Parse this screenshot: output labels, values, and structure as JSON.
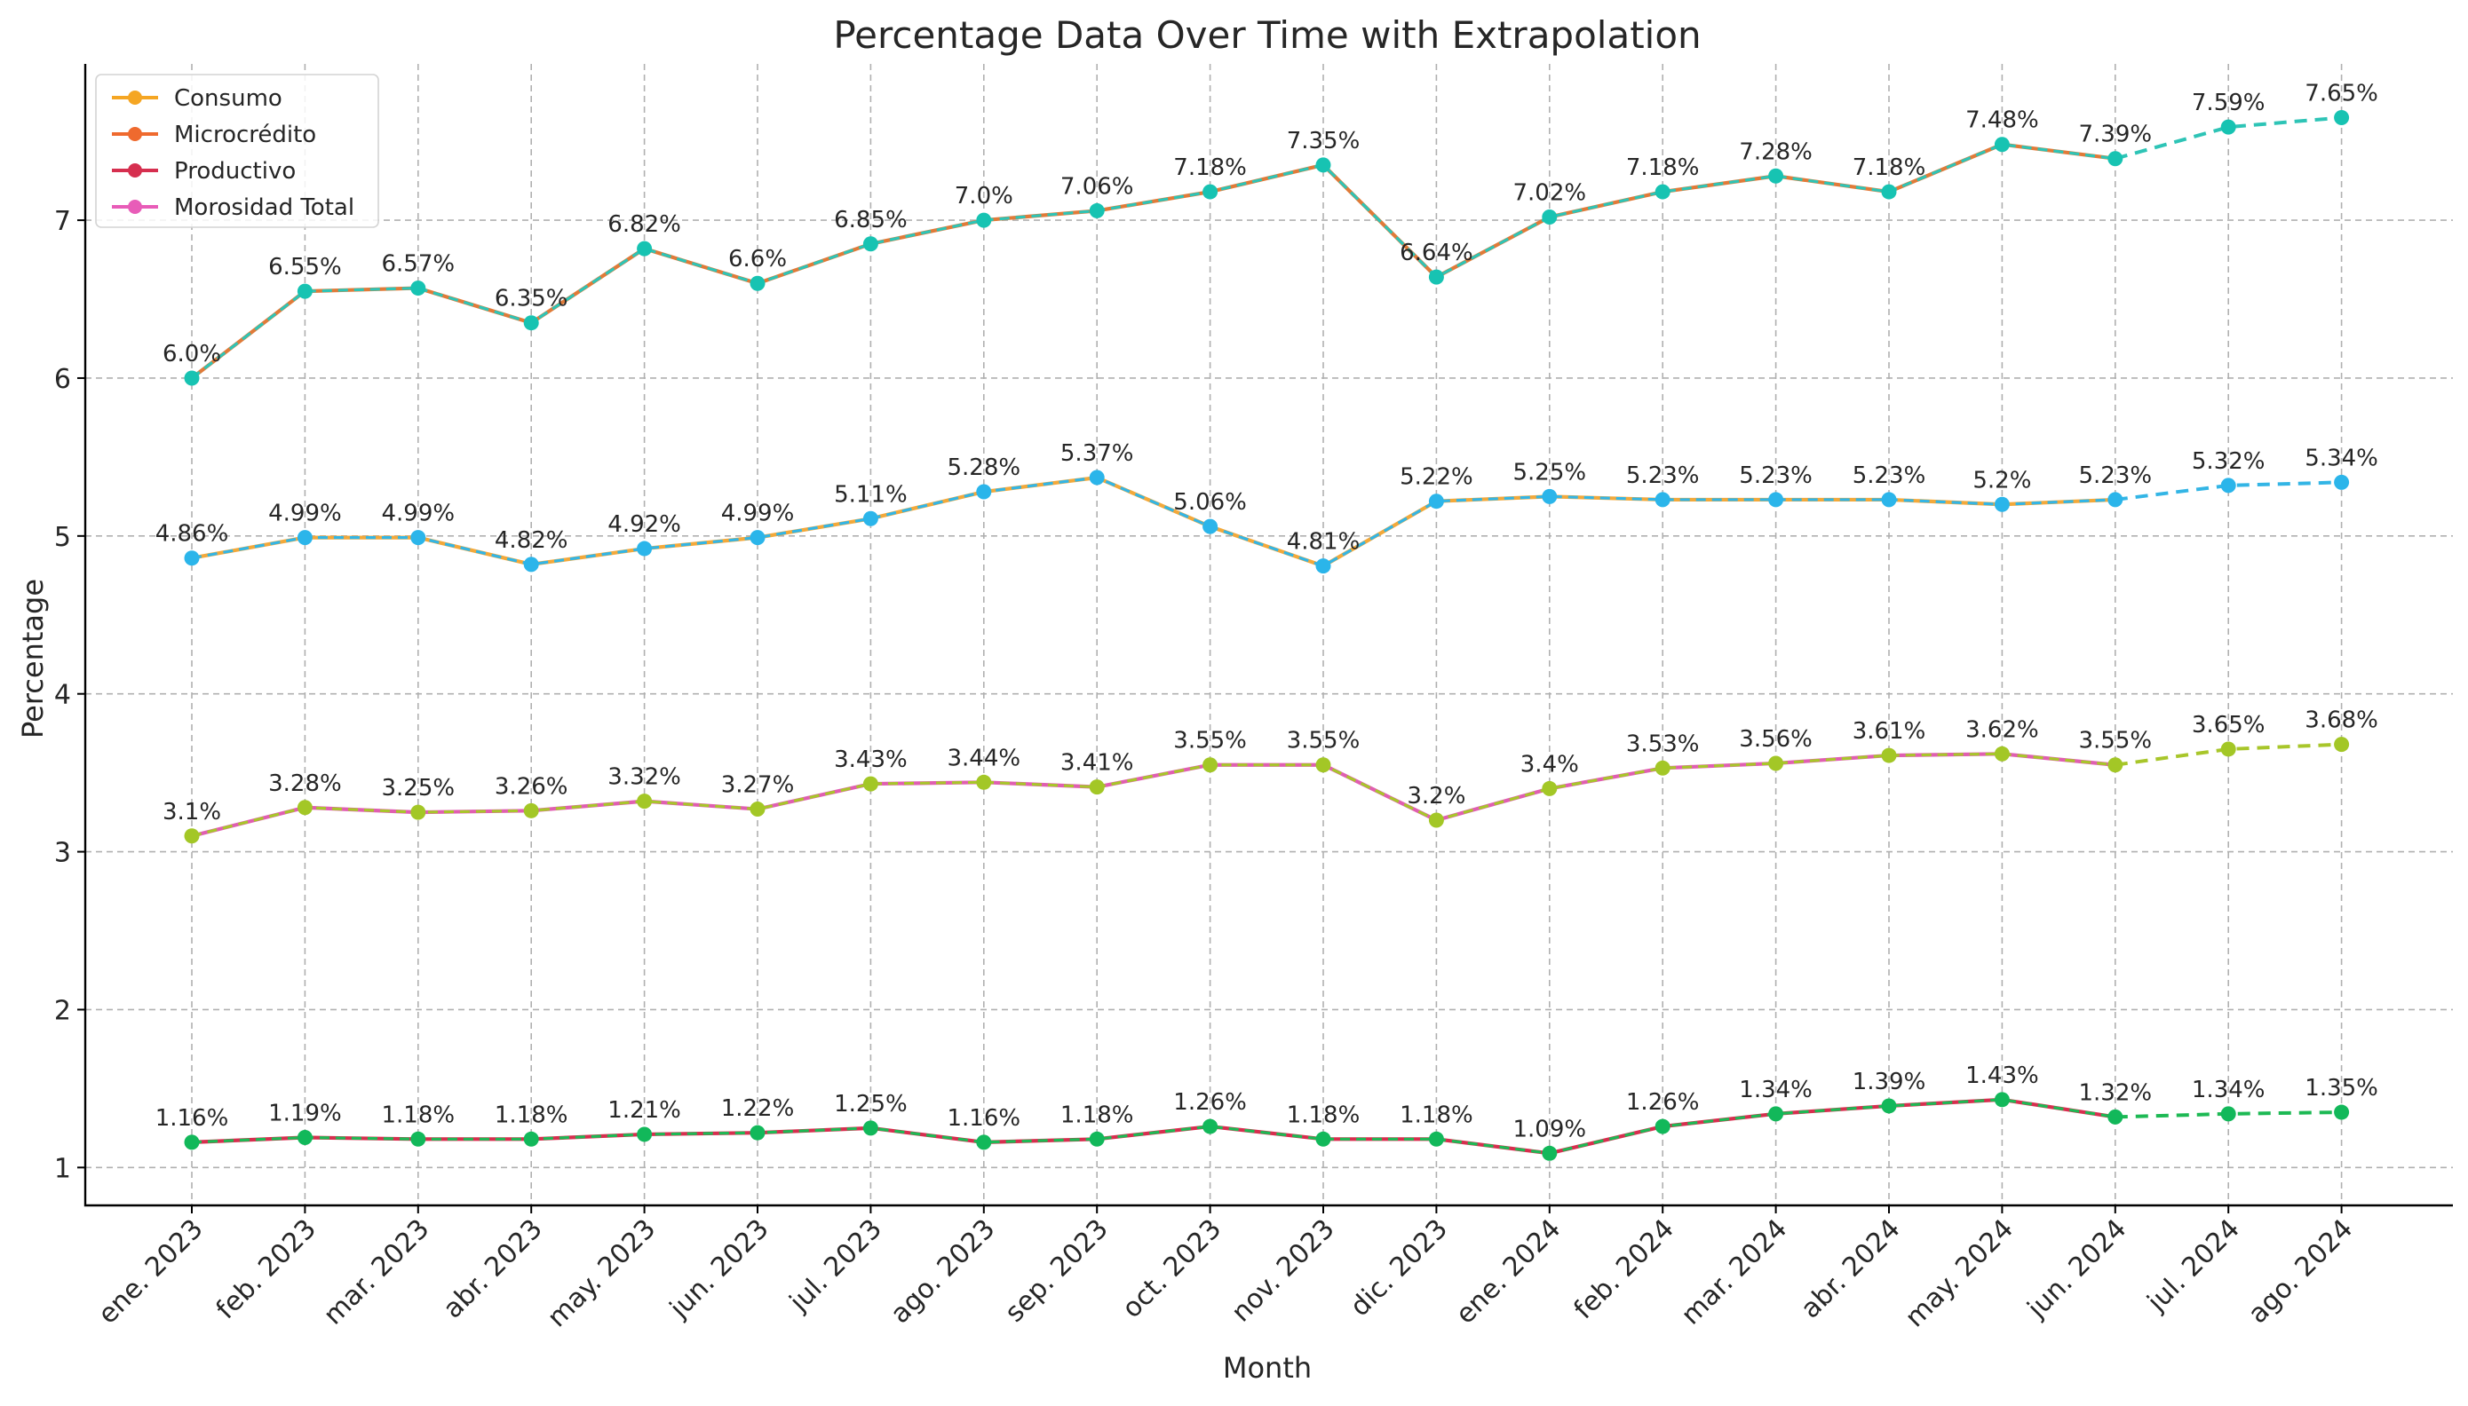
{
  "chart_data": {
    "type": "line",
    "title": "Percentage Data Over Time with Extrapolation",
    "xlabel": "Month",
    "ylabel": "Percentage",
    "ylim": [
      0.76,
      7.99
    ],
    "yticks": [
      1,
      2,
      3,
      4,
      5,
      6,
      7
    ],
    "grid": true,
    "legend_position": "top-left",
    "categories": [
      "ene. 2023",
      "feb. 2023",
      "mar. 2023",
      "abr. 2023",
      "may. 2023",
      "jun. 2023",
      "jul. 2023",
      "ago. 2023",
      "sep. 2023",
      "oct. 2023",
      "nov. 2023",
      "dic. 2023",
      "ene. 2024",
      "feb. 2024",
      "mar. 2024",
      "abr. 2024",
      "may. 2024",
      "jun. 2024",
      "jul. 2024",
      "ago. 2024"
    ],
    "extrapolation_start_index": 17,
    "legend": [
      {
        "name": "Consumo",
        "color": "#f5a623"
      },
      {
        "name": "Microcrédito",
        "color": "#ef6a2e"
      },
      {
        "name": "Productivo",
        "color": "#d62f4f"
      },
      {
        "name": "Morosidad Total",
        "color": "#e85cb8"
      }
    ],
    "series": [
      {
        "line_color": "#e07b39",
        "overlay_color": "#2ec4b6",
        "marker_color": "#17c3b2",
        "values": [
          6.0,
          6.55,
          6.57,
          6.35,
          6.82,
          6.6,
          6.85,
          7.0,
          7.06,
          7.18,
          7.35,
          6.64,
          7.02,
          7.18,
          7.28,
          7.18,
          7.48,
          7.39,
          7.59,
          7.65
        ],
        "labels": [
          "6.0%",
          "6.55%",
          "6.57%",
          "6.35%",
          "6.82%",
          "6.6%",
          "6.85%",
          "7.0%",
          "7.06%",
          "7.18%",
          "7.35%",
          "6.64%",
          "7.02%",
          "7.18%",
          "7.28%",
          "7.18%",
          "7.48%",
          "7.39%",
          "7.59%",
          "7.65%"
        ]
      },
      {
        "line_color": "#f2a93b",
        "overlay_color": "#33b5e5",
        "marker_color": "#2bb5ea",
        "values": [
          4.86,
          4.99,
          4.99,
          4.82,
          4.92,
          4.99,
          5.11,
          5.28,
          5.37,
          5.06,
          4.81,
          5.22,
          5.25,
          5.23,
          5.23,
          5.23,
          5.2,
          5.23,
          5.32,
          5.34
        ],
        "labels": [
          "4.86%",
          "4.99%",
          "4.99%",
          "4.82%",
          "4.92%",
          "4.99%",
          "5.11%",
          "5.28%",
          "5.37%",
          "5.06%",
          "4.81%",
          "5.22%",
          "5.25%",
          "5.23%",
          "5.23%",
          "5.23%",
          "5.2%",
          "5.23%",
          "5.32%",
          "5.34%"
        ]
      },
      {
        "line_color": "#e05fb0",
        "overlay_color": "#a8c62a",
        "marker_color": "#a3c726",
        "values": [
          3.1,
          3.28,
          3.25,
          3.26,
          3.32,
          3.27,
          3.43,
          3.44,
          3.41,
          3.55,
          3.55,
          3.2,
          3.4,
          3.53,
          3.56,
          3.61,
          3.62,
          3.55,
          3.65,
          3.68
        ],
        "labels": [
          "3.1%",
          "3.28%",
          "3.25%",
          "3.26%",
          "3.32%",
          "3.27%",
          "3.43%",
          "3.44%",
          "3.41%",
          "3.55%",
          "3.55%",
          "3.2%",
          "3.4%",
          "3.53%",
          "3.56%",
          "3.61%",
          "3.62%",
          "3.55%",
          "3.65%",
          "3.68%"
        ]
      },
      {
        "line_color": "#d62f4f",
        "overlay_color": "#1db954",
        "marker_color": "#12b85a",
        "values": [
          1.16,
          1.19,
          1.18,
          1.18,
          1.21,
          1.22,
          1.25,
          1.16,
          1.18,
          1.26,
          1.18,
          1.18,
          1.09,
          1.26,
          1.34,
          1.39,
          1.43,
          1.32,
          1.34,
          1.35
        ],
        "labels": [
          "1.16%",
          "1.19%",
          "1.18%",
          "1.18%",
          "1.21%",
          "1.22%",
          "1.25%",
          "1.16%",
          "1.18%",
          "1.26%",
          "1.18%",
          "1.18%",
          "1.09%",
          "1.26%",
          "1.34%",
          "1.39%",
          "1.43%",
          "1.32%",
          "1.34%",
          "1.35%"
        ]
      }
    ]
  }
}
